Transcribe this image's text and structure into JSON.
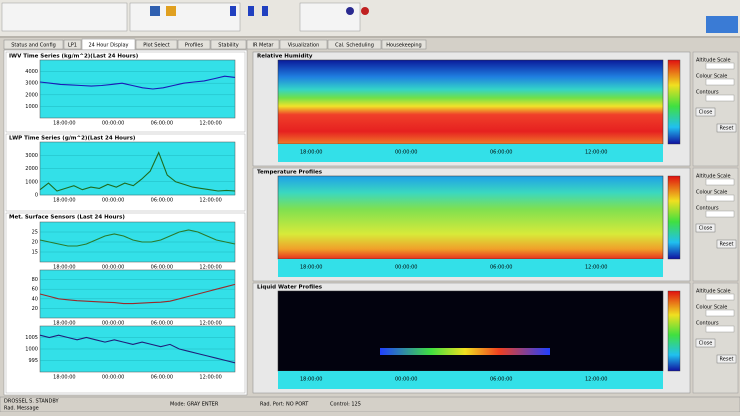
{
  "tabs": [
    "Status and Config",
    "LP1",
    "24 Hour Display",
    "Plot Select",
    "Profiles",
    "Stability",
    "IR Metar",
    "Visualization",
    "Cal. Scheduling",
    "Housekeeping"
  ],
  "active_tab": 2,
  "left_panels": [
    {
      "title": "IWV Time Series (kg/m^2)(Last 24 Hours)",
      "plots": [
        {
          "color": "#1a1ab8",
          "ylim": [
            0,
            5000
          ],
          "yticks": [
            1000,
            2000,
            3000,
            4000
          ],
          "values": [
            3100,
            3000,
            2900,
            2850,
            2800,
            2750,
            2800,
            2900,
            3000,
            2800,
            2600,
            2500,
            2600,
            2800,
            3000,
            3100,
            3200,
            3400,
            3600,
            3500
          ]
        }
      ]
    },
    {
      "title": "LWP Time Series (g/m^2)(Last 24 Hours)",
      "plots": [
        {
          "color": "#1e6b1e",
          "ylim": [
            0,
            4000
          ],
          "yticks": [
            0,
            1000,
            2000,
            3000
          ],
          "values": [
            400,
            900,
            300,
            500,
            700,
            400,
            600,
            500,
            800,
            600,
            900,
            700,
            1200,
            1800,
            3200,
            1500,
            1000,
            800,
            600,
            500,
            400,
            300,
            350,
            300
          ]
        }
      ]
    },
    {
      "title": "Met. Surface Sensors (Last 24 Hours)",
      "plots": [
        {
          "color": "#2a7a2a",
          "ylim": [
            10,
            30
          ],
          "yticks": [
            15,
            20,
            25
          ],
          "values": [
            21,
            20,
            19,
            18,
            18,
            19,
            21,
            23,
            24,
            23,
            21,
            20,
            20,
            21,
            23,
            25,
            26,
            25,
            23,
            21,
            20,
            19
          ]
        },
        {
          "color": "#9a2a2a",
          "ylim": [
            0,
            100
          ],
          "yticks": [
            20,
            40,
            60,
            80
          ],
          "values": [
            50,
            45,
            40,
            38,
            36,
            35,
            34,
            33,
            32,
            30,
            30,
            31,
            32,
            33,
            35,
            40,
            45,
            50,
            55,
            60,
            65,
            70
          ]
        },
        {
          "color": "#1f1f7a",
          "ylim": [
            990,
            1010
          ],
          "yticks": [
            995,
            1000,
            1005
          ],
          "values": [
            1006,
            1005,
            1006,
            1005,
            1004,
            1005,
            1004,
            1003,
            1004,
            1003,
            1002,
            1003,
            1002,
            1001,
            1002,
            1000,
            999,
            998,
            997,
            996,
            995,
            994
          ]
        }
      ]
    }
  ],
  "xticks": [
    "18:00:00",
    "00:00:00",
    "06:00:00",
    "12:00:00"
  ],
  "right_panels": [
    "Relative Humidity",
    "Temperature Profiles",
    "Liquid Water Profiles"
  ],
  "controls": [
    "Altitude Scale",
    "Colour Scale",
    "Contours",
    "Close",
    "Reset"
  ],
  "status": [
    "DROSSEL S. STANDBY",
    "Rad. Message",
    "Mode: GRAY ENTER",
    "Rad. Port: NO PORT",
    "Control: 125"
  ]
}
